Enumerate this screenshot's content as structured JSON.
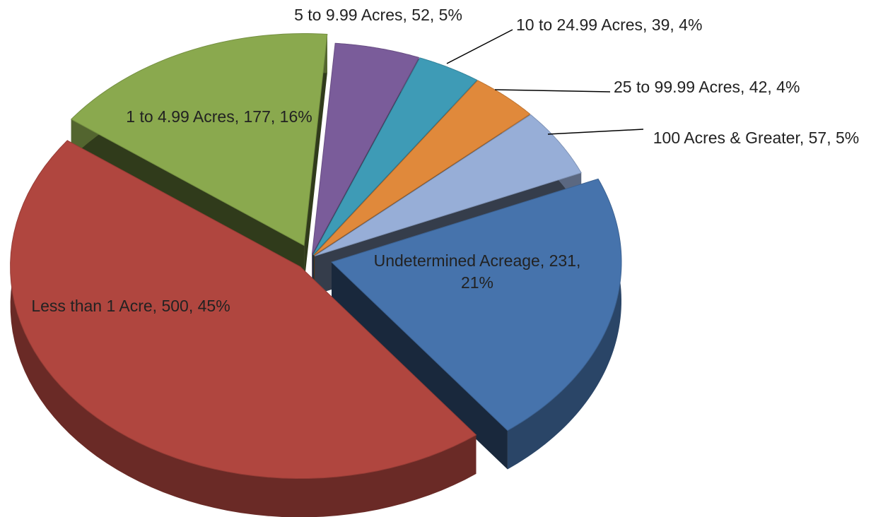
{
  "chart_data": {
    "type": "pie",
    "data_labels": [
      "5 to 9.99 Acres, 52, 5%",
      "10 to 24.99 Acres, 39, 4%",
      "25 to 99.99 Acres, 42, 4%",
      "100 Acres & Greater, 57, 5%",
      "Undetermined Acreage, 231, 21%",
      "Less than 1 Acre, 500, 45%",
      "1 to 4.99 Acres, 177, 16%"
    ],
    "values": [
      52,
      39,
      42,
      57,
      231,
      500,
      177
    ],
    "colors": [
      "#7a5c9a",
      "#3e9bb6",
      "#e0893b",
      "#97aed7",
      "#4673ac",
      "#b0463f",
      "#8aa94e"
    ]
  }
}
